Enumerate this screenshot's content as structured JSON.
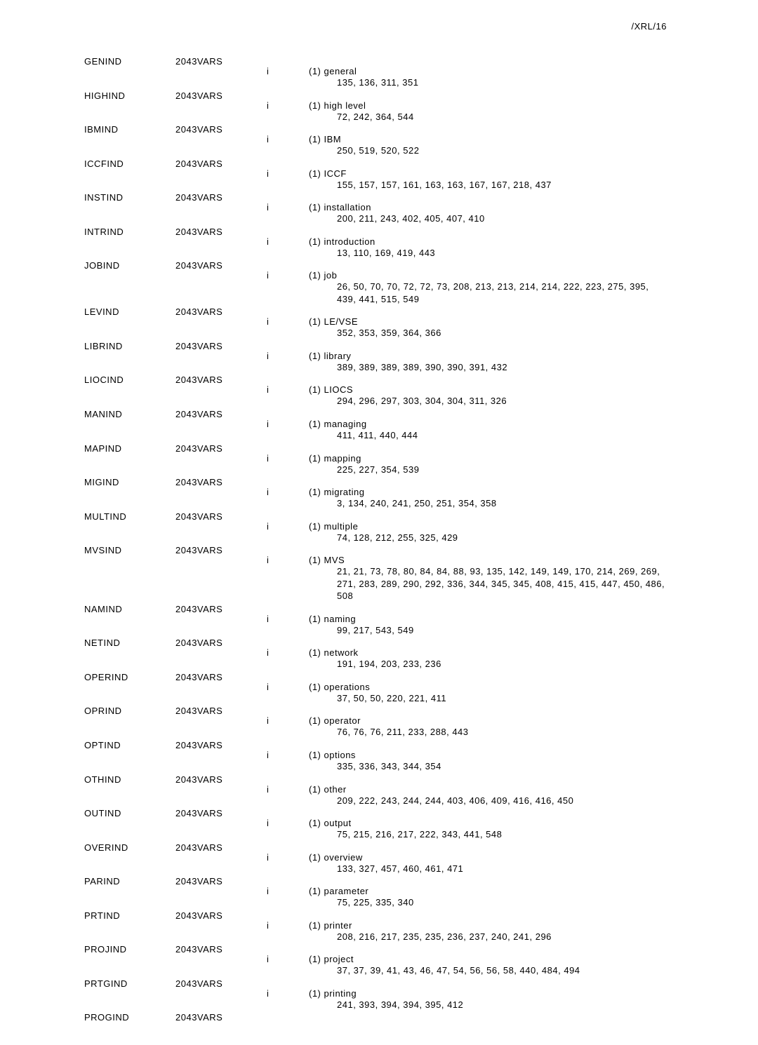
{
  "header": {
    "right": "/XRL/16"
  },
  "index_marker": "i",
  "count_prefix": "(1)",
  "entries": [
    {
      "key": "GENIND",
      "val": "2043VARS",
      "title": "general",
      "refs": "135, 136, 311, 351"
    },
    {
      "key": "HIGHIND",
      "val": "2043VARS",
      "title": "high level",
      "refs": "72, 242, 364, 544"
    },
    {
      "key": "IBMIND",
      "val": "2043VARS",
      "title": "IBM",
      "refs": "250, 519, 520, 522"
    },
    {
      "key": "ICCFIND",
      "val": "2043VARS",
      "title": "ICCF",
      "refs": "155, 157, 157, 161, 163, 163, 167, 167, 218, 437"
    },
    {
      "key": "INSTIND",
      "val": "2043VARS",
      "title": "installation",
      "refs": "200, 211, 243, 402, 405, 407, 410"
    },
    {
      "key": "INTRIND",
      "val": "2043VARS",
      "title": "introduction",
      "refs": "13, 110, 169, 419, 443"
    },
    {
      "key": "JOBIND",
      "val": "2043VARS",
      "title": "job",
      "refs": "26, 50, 70, 70, 72, 72, 73, 208, 213, 213, 214, 214, 222, 223, 275, 395, 439, 441, 515, 549"
    },
    {
      "key": "LEVIND",
      "val": "2043VARS",
      "title": "LE/VSE",
      "refs": "352, 353, 359, 364, 366"
    },
    {
      "key": "LIBRIND",
      "val": "2043VARS",
      "title": "library",
      "refs": "389, 389, 389, 389, 390, 390, 391, 432"
    },
    {
      "key": "LIOCIND",
      "val": "2043VARS",
      "title": "LIOCS",
      "refs": "294, 296, 297, 303, 304, 304, 311, 326"
    },
    {
      "key": "MANIND",
      "val": "2043VARS",
      "title": "managing",
      "refs": "411, 411, 440, 444"
    },
    {
      "key": "MAPIND",
      "val": "2043VARS",
      "title": "mapping",
      "refs": "225, 227, 354, 539"
    },
    {
      "key": "MIGIND",
      "val": "2043VARS",
      "title": "migrating",
      "refs": "3, 134, 240, 241, 250, 251, 354, 358"
    },
    {
      "key": "MULTIND",
      "val": "2043VARS",
      "title": "multiple",
      "refs": "74, 128, 212, 255, 325, 429"
    },
    {
      "key": "MVSIND",
      "val": "2043VARS",
      "title": "MVS",
      "refs": "21, 21, 73, 78, 80, 84, 84, 88, 93, 135, 142, 149, 149, 170, 214, 269, 269, 271, 283, 289, 290, 292, 336, 344, 345, 345, 408, 415, 415, 447, 450, 486, 508"
    },
    {
      "key": "NAMIND",
      "val": "2043VARS",
      "title": "naming",
      "refs": "99, 217, 543, 549"
    },
    {
      "key": "NETIND",
      "val": "2043VARS",
      "title": "network",
      "refs": "191, 194, 203, 233, 236"
    },
    {
      "key": "OPERIND",
      "val": "2043VARS",
      "title": "operations",
      "refs": "37, 50, 50, 220, 221, 411"
    },
    {
      "key": "OPRIND",
      "val": "2043VARS",
      "title": "operator",
      "refs": "76, 76, 76, 211, 233, 288, 443"
    },
    {
      "key": "OPTIND",
      "val": "2043VARS",
      "title": "options",
      "refs": "335, 336, 343, 344, 354"
    },
    {
      "key": "OTHIND",
      "val": "2043VARS",
      "title": "other",
      "refs": "209, 222, 243, 244, 244, 403, 406, 409, 416, 416, 450"
    },
    {
      "key": "OUTIND",
      "val": "2043VARS",
      "title": "output",
      "refs": "75, 215, 216, 217, 222, 343, 441, 548"
    },
    {
      "key": "OVERIND",
      "val": "2043VARS",
      "title": "overview",
      "refs": "133, 327, 457, 460, 461, 471"
    },
    {
      "key": "PARIND",
      "val": "2043VARS",
      "title": "parameter",
      "refs": "75, 225, 335, 340"
    },
    {
      "key": "PRTIND",
      "val": "2043VARS",
      "title": "printer",
      "refs": "208, 216, 217, 235, 235, 236, 237, 240, 241, 296"
    },
    {
      "key": "PROJIND",
      "val": "2043VARS",
      "title": "project",
      "refs": "37, 37, 39, 41, 43, 46, 47, 54, 56, 56, 58, 440, 484, 494"
    },
    {
      "key": "PRTGIND",
      "val": "2043VARS",
      "title": "printing",
      "refs": "241, 393, 394, 394, 395, 412"
    },
    {
      "key": "PROGIND",
      "val": "2043VARS",
      "title": "",
      "refs": "",
      "hide_desc": true
    }
  ]
}
